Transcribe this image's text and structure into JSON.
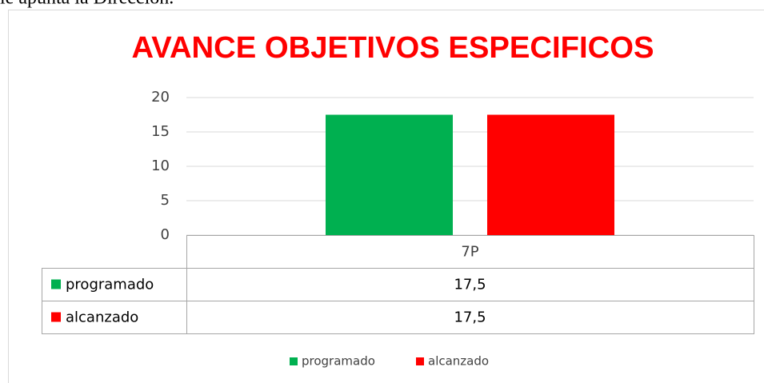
{
  "page_text": "le apunta la Dirección.",
  "chart_data": {
    "type": "bar",
    "title": "AVANCE OBJETIVOS ESPECIFICOS",
    "categories": [
      "7P"
    ],
    "series": [
      {
        "name": "programado",
        "color": "#00b050",
        "values": [
          17.5
        ],
        "value_labels": [
          "17,5"
        ]
      },
      {
        "name": "alcanzado",
        "color": "#ff0000",
        "values": [
          17.5
        ],
        "value_labels": [
          "17,5"
        ]
      }
    ],
    "ylim": [
      0,
      20
    ],
    "yticks": [
      0,
      5,
      10,
      15,
      20
    ],
    "grid": true,
    "legend": "bottom",
    "data_table": true
  }
}
